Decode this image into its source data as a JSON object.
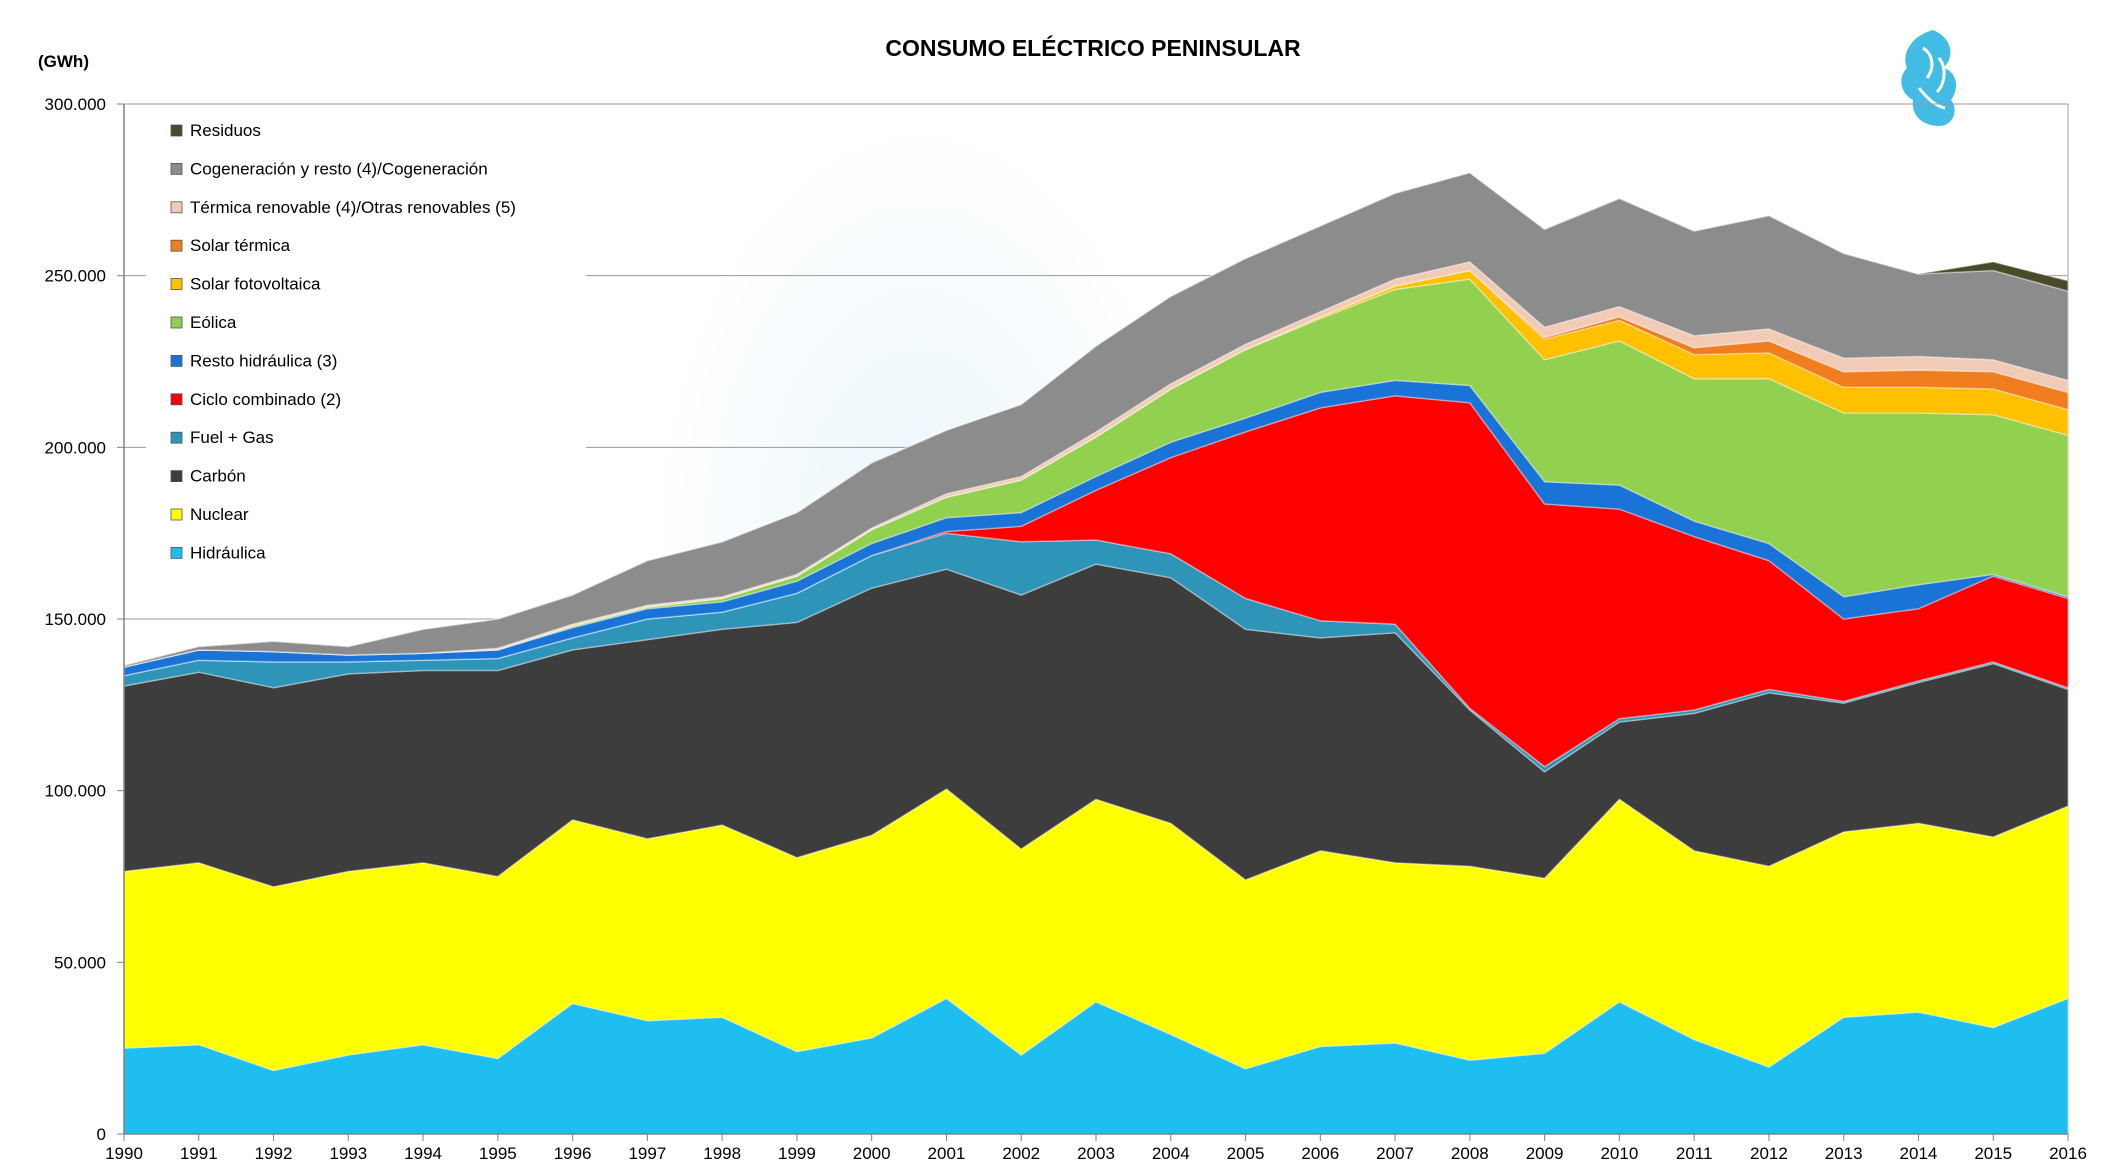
{
  "chart_data": {
    "type": "area",
    "stacked": true,
    "title": "CONSUMO ELÉCTRICO  PENINSULAR",
    "ylabel": "(GWh)",
    "xlabel": "",
    "ylim": [
      0,
      300000
    ],
    "yticks": [
      0,
      50000,
      100000,
      150000,
      200000,
      250000,
      300000
    ],
    "ytick_labels": [
      "0",
      "50.000",
      "100.000",
      "150.000",
      "200.000",
      "250.000",
      "300.000"
    ],
    "grid": true,
    "legend_position": "top-left",
    "x": [
      "1990",
      "1991",
      "1992",
      "1993",
      "1994",
      "1995",
      "1996",
      "1997",
      "1998",
      "1999",
      "2000",
      "2001",
      "2002",
      "2003",
      "2004",
      "2005",
      "2006",
      "2007",
      "2008",
      "2009",
      "2010",
      "2011",
      "2012",
      "2013",
      "2014",
      "2015",
      "2016"
    ],
    "series": [
      {
        "name": "Hidráulica",
        "color": "#1ebef0",
        "values": [
          25000,
          26000,
          18500,
          23000,
          26000,
          22000,
          38000,
          33000,
          34000,
          24000,
          28000,
          39500,
          23000,
          38500,
          29000,
          19000,
          25500,
          26500,
          21500,
          23500,
          38500,
          27500,
          19500,
          34000,
          35500,
          31000,
          39500
        ]
      },
      {
        "name": "Nuclear",
        "color": "#ffff00",
        "values": [
          51500,
          53000,
          53500,
          53500,
          53000,
          53000,
          53500,
          53000,
          56000,
          56500,
          59000,
          61000,
          60000,
          59000,
          61500,
          55000,
          57000,
          52500,
          56500,
          51000,
          59000,
          55000,
          58500,
          54000,
          55000,
          55500,
          56000
        ]
      },
      {
        "name": "Carbón",
        "color": "#3d3d3d",
        "values": [
          54000,
          55500,
          58000,
          57500,
          56000,
          60000,
          49500,
          58000,
          57000,
          68500,
          72000,
          64000,
          74000,
          68500,
          71500,
          73000,
          62000,
          67000,
          45500,
          31000,
          22500,
          40000,
          50500,
          37500,
          41000,
          50500,
          34000
        ]
      },
      {
        "name": "Fuel + Gas",
        "color": "#2f95b8",
        "values": [
          3000,
          3500,
          7500,
          3500,
          3000,
          3500,
          3500,
          6000,
          5000,
          8500,
          9500,
          10500,
          15500,
          7000,
          7000,
          9000,
          5000,
          2500,
          500,
          1500,
          1000,
          1000,
          1000,
          500,
          500,
          500,
          500
        ]
      },
      {
        "name": "Ciclo combinado (2)",
        "color": "#ff0000",
        "values": [
          0,
          0,
          0,
          0,
          0,
          0,
          0,
          0,
          0,
          0,
          0,
          500,
          4500,
          14500,
          28000,
          48500,
          62000,
          66500,
          89000,
          76500,
          61000,
          50500,
          37500,
          24000,
          21000,
          25000,
          26000
        ]
      },
      {
        "name": "Resto hidráulica (3)",
        "color": "#1a73d6",
        "values": [
          2500,
          3000,
          3000,
          2000,
          2000,
          2500,
          3000,
          3000,
          3000,
          3500,
          3500,
          4000,
          4000,
          4000,
          4500,
          4000,
          4500,
          4500,
          5000,
          6500,
          7000,
          4500,
          5000,
          6500,
          7000,
          500,
          500
        ]
      },
      {
        "name": "Eólica",
        "color": "#92d050",
        "values": [
          0,
          0,
          0,
          0,
          0,
          0,
          500,
          500,
          1000,
          1500,
          4000,
          6000,
          9500,
          11500,
          15500,
          20000,
          21500,
          26500,
          31000,
          35500,
          42000,
          41500,
          48000,
          53500,
          50000,
          46500,
          47000
        ]
      },
      {
        "name": "Solar fotovoltaica",
        "color": "#ffc000",
        "values": [
          0,
          0,
          0,
          0,
          0,
          0,
          0,
          0,
          0,
          0,
          0,
          0,
          0,
          0,
          0,
          0,
          500,
          1000,
          2500,
          6000,
          6000,
          7000,
          7500,
          7500,
          7500,
          7500,
          7500
        ]
      },
      {
        "name": "Solar térmica",
        "color": "#f07d1e",
        "values": [
          0,
          0,
          0,
          0,
          0,
          0,
          0,
          0,
          0,
          0,
          0,
          0,
          0,
          0,
          0,
          0,
          0,
          0,
          0,
          500,
          1000,
          2000,
          3500,
          4500,
          5000,
          5000,
          5000
        ]
      },
      {
        "name": "Térmica renovable (4)/Otras renovables (5)",
        "color": "#f2cbb7",
        "values": [
          0,
          0,
          0,
          0,
          0,
          500,
          500,
          500,
          500,
          500,
          500,
          1000,
          1000,
          1500,
          1500,
          1500,
          1500,
          2000,
          2500,
          3000,
          3000,
          3500,
          3500,
          4000,
          4000,
          3500,
          3500
        ]
      },
      {
        "name": "Cogeneración y resto (4)/Cogeneración",
        "color": "#8c8c8c",
        "values": [
          500,
          1000,
          3000,
          2500,
          7000,
          8500,
          8500,
          13000,
          16000,
          18000,
          19000,
          18500,
          21000,
          25000,
          25500,
          25000,
          25000,
          25000,
          26000,
          28500,
          31500,
          30500,
          33000,
          30500,
          24000,
          26000,
          26000
        ]
      },
      {
        "name": "Residuos",
        "color": "#4a4a2a",
        "values": [
          0,
          0,
          0,
          0,
          0,
          0,
          0,
          0,
          0,
          0,
          0,
          0,
          0,
          0,
          0,
          0,
          0,
          0,
          0,
          0,
          0,
          0,
          0,
          0,
          0,
          2500,
          3000
        ]
      }
    ]
  }
}
